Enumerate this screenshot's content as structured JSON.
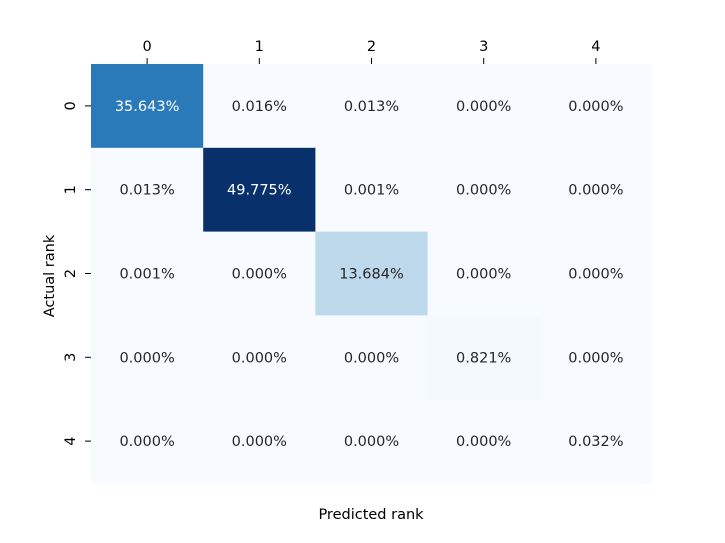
{
  "chart_data": {
    "type": "heatmap",
    "title": "",
    "xlabel": "Predicted rank",
    "ylabel": "Actual rank",
    "x_categories": [
      "0",
      "1",
      "2",
      "3",
      "4"
    ],
    "y_categories": [
      "0",
      "1",
      "2",
      "3",
      "4"
    ],
    "x_axis_position": "top",
    "colorbar": false,
    "colormap": "Blues",
    "value_range": [
      0,
      49.775
    ],
    "values": [
      [
        35.643,
        0.016,
        0.013,
        0.0,
        0.0
      ],
      [
        0.013,
        49.775,
        0.001,
        0.0,
        0.0
      ],
      [
        0.001,
        0.0,
        13.684,
        0.0,
        0.0
      ],
      [
        0.0,
        0.0,
        0.0,
        0.821,
        0.0
      ],
      [
        0.0,
        0.0,
        0.0,
        0.0,
        0.032
      ]
    ],
    "cell_labels": [
      [
        "35.643%",
        "0.016%",
        "0.013%",
        "0.000%",
        "0.000%"
      ],
      [
        "0.013%",
        "49.775%",
        "0.001%",
        "0.000%",
        "0.000%"
      ],
      [
        "0.001%",
        "0.000%",
        "13.684%",
        "0.000%",
        "0.000%"
      ],
      [
        "0.000%",
        "0.000%",
        "0.000%",
        "0.821%",
        "0.000%"
      ],
      [
        "0.000%",
        "0.000%",
        "0.000%",
        "0.000%",
        "0.032%"
      ]
    ]
  }
}
